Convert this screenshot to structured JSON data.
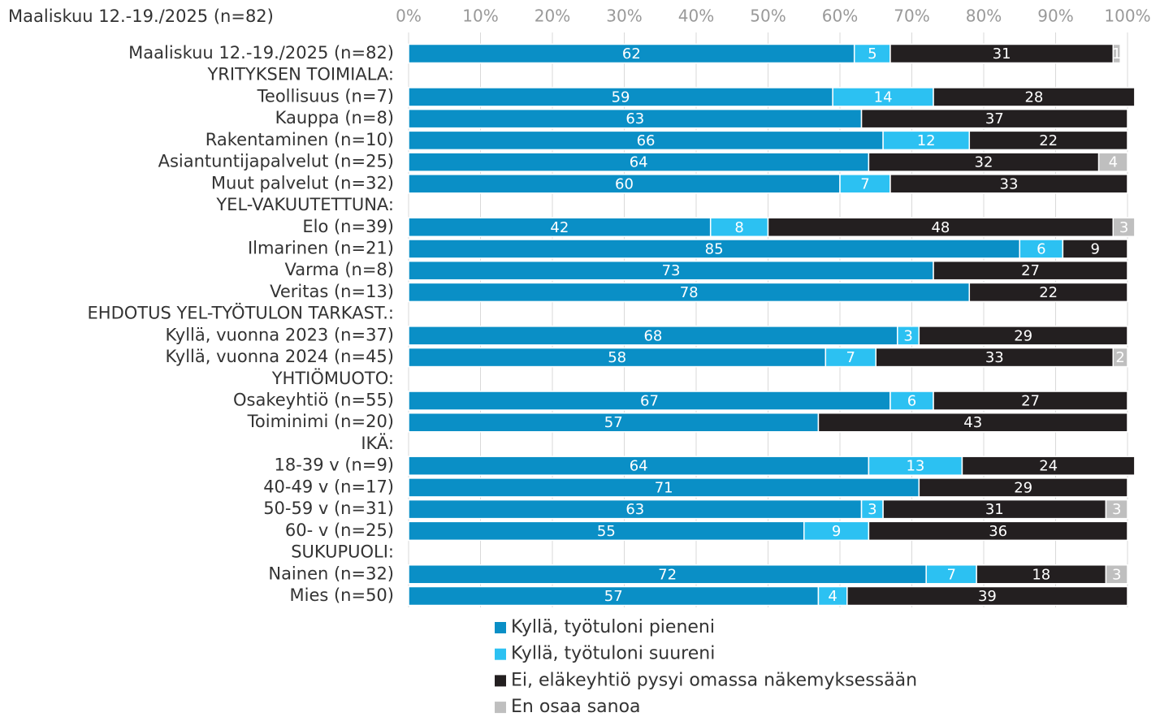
{
  "chart_data": {
    "type": "stacked-barh",
    "title": "Maaliskuu 12.-19./2025 (n=82)",
    "categories": [
      "Maaliskuu 12.-19./2025 (n=82)",
      "YRITYKSEN TOIMIALA:",
      "Teollisuus (n=7)",
      "Kauppa (n=8)",
      "Rakentaminen (n=10)",
      "Asiantuntijapalvelut (n=25)",
      "Muut palvelut (n=32)",
      "YEL-VAKUUTETTUNA:",
      "Elo (n=39)",
      "Ilmarinen (n=21)",
      "Varma (n=8)",
      "Veritas (n=13)",
      "EHDOTUS YEL-TYÖTULON TARKAST.:",
      "Kyllä, vuonna 2023 (n=37)",
      "Kyllä, vuonna 2024 (n=45)",
      "YHTIÖMUOTO:",
      "Osakeyhtiö (n=55)",
      "Toiminimi (n=20)",
      "IKÄ:",
      "18-39 v (n=9)",
      "40-49 v (n=17)",
      "50-59 v (n=31)",
      "60- v (n=25)",
      "SUKUPUOLI:",
      "Nainen (n=32)",
      "Mies (n=50)"
    ],
    "series": [
      {
        "name": "Kyllä, työtuloni pieneni",
        "color": "#0a8fc6",
        "values": [
          62,
          null,
          59,
          63,
          66,
          64,
          60,
          null,
          42,
          85,
          73,
          78,
          null,
          68,
          58,
          null,
          67,
          57,
          null,
          64,
          71,
          63,
          55,
          null,
          72,
          57
        ]
      },
      {
        "name": "Kyllä, työtuloni suureni",
        "color": "#2cc1f2",
        "values": [
          5,
          null,
          14,
          null,
          12,
          null,
          7,
          null,
          8,
          6,
          null,
          null,
          null,
          3,
          7,
          null,
          6,
          null,
          null,
          13,
          null,
          3,
          9,
          null,
          7,
          4
        ]
      },
      {
        "name": "Ei, eläkeyhtiö pysyi omassa näkemyksessään",
        "color": "#231f20",
        "values": [
          31,
          null,
          28,
          37,
          22,
          32,
          33,
          null,
          48,
          9,
          27,
          22,
          null,
          29,
          33,
          null,
          27,
          43,
          null,
          24,
          29,
          31,
          36,
          null,
          18,
          39
        ]
      },
      {
        "name": "En osaa sanoa",
        "color": "#bfbfbf",
        "values": [
          1,
          null,
          null,
          null,
          null,
          4,
          null,
          null,
          3,
          null,
          null,
          null,
          null,
          null,
          2,
          null,
          null,
          null,
          null,
          null,
          null,
          3,
          null,
          null,
          3,
          null
        ]
      }
    ],
    "xlim": [
      0,
      100
    ],
    "xticks": [
      {
        "value": 0,
        "label": "0%"
      },
      {
        "value": 10,
        "label": "10%"
      },
      {
        "value": 20,
        "label": "20%"
      },
      {
        "value": 30,
        "label": "30%"
      },
      {
        "value": 40,
        "label": "40%"
      },
      {
        "value": 50,
        "label": "50%"
      },
      {
        "value": 60,
        "label": "60%"
      },
      {
        "value": 70,
        "label": "70%"
      },
      {
        "value": 80,
        "label": "80%"
      },
      {
        "value": 90,
        "label": "90%"
      },
      {
        "value": 100,
        "label": "100%"
      }
    ],
    "grid": true,
    "legend": "bottom"
  }
}
